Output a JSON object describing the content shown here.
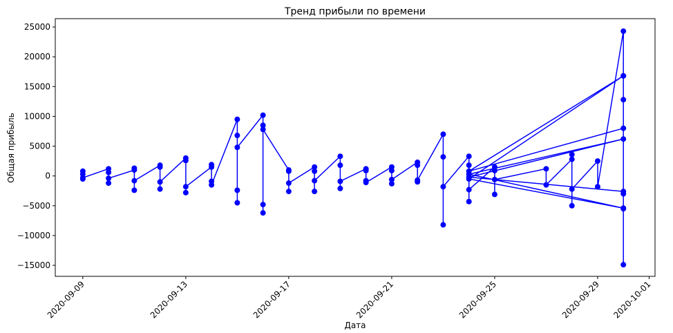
{
  "chart_data": {
    "type": "line",
    "title": "Тренд прибыли по времени",
    "xlabel": "Дата",
    "ylabel": "Общая прибыль",
    "color": "#0000ff",
    "marker": "o",
    "xlim": [
      "2020-09-07T22:20",
      "2020-10-01T05:30"
    ],
    "xticks": [
      "2020-09-09",
      "2020-09-13",
      "2020-09-17",
      "2020-09-21",
      "2020-09-25",
      "2020-09-29",
      "2020-10-01"
    ],
    "ylim": [
      -16850,
      26400
    ],
    "yticks": [
      {
        "value": -15000,
        "label": "−15000"
      },
      {
        "value": -10000,
        "label": "−10000"
      },
      {
        "value": -5000,
        "label": "−5000"
      },
      0,
      5000,
      10000,
      15000,
      20000,
      25000
    ],
    "x": [
      "2020-09-09",
      "2020-09-09",
      "2020-09-09",
      "2020-09-09",
      "2020-09-10",
      "2020-09-10",
      "2020-09-10",
      "2020-09-10",
      "2020-09-11",
      "2020-09-11",
      "2020-09-11",
      "2020-09-11",
      "2020-09-12",
      "2020-09-12",
      "2020-09-12",
      "2020-09-12",
      "2020-09-13",
      "2020-09-13",
      "2020-09-13",
      "2020-09-13",
      "2020-09-14",
      "2020-09-14",
      "2020-09-14",
      "2020-09-14",
      "2020-09-15",
      "2020-09-15",
      "2020-09-15",
      "2020-09-15",
      "2020-09-15",
      "2020-09-16",
      "2020-09-16",
      "2020-09-16",
      "2020-09-16",
      "2020-09-16",
      "2020-09-17",
      "2020-09-17",
      "2020-09-17",
      "2020-09-17",
      "2020-09-18",
      "2020-09-18",
      "2020-09-18",
      "2020-09-18",
      "2020-09-19",
      "2020-09-19",
      "2020-09-19",
      "2020-09-19",
      "2020-09-20",
      "2020-09-20",
      "2020-09-20",
      "2020-09-20",
      "2020-09-21",
      "2020-09-21",
      "2020-09-21",
      "2020-09-21",
      "2020-09-22",
      "2020-09-22",
      "2020-09-22",
      "2020-09-22",
      "2020-09-23",
      "2020-09-23",
      "2020-09-23",
      "2020-09-23",
      "2020-09-24",
      "2020-09-24",
      "2020-09-24",
      "2020-09-24",
      "2020-09-25",
      "2020-09-25",
      "2020-09-25",
      "2020-09-25",
      "2020-09-27",
      "2020-09-27",
      "2020-09-28",
      "2020-09-28",
      "2020-09-28",
      "2020-09-28",
      "2020-09-29",
      "2020-09-29",
      "2020-09-30",
      "2020-09-30",
      "2020-09-30",
      "2020-09-30",
      "2020-09-30",
      "2020-09-30",
      "2020-09-30",
      "2020-09-24",
      "2020-09-30",
      "2020-09-24",
      "2020-09-30",
      "2020-09-24",
      "2020-09-30",
      "2020-09-24",
      "2020-09-30"
    ],
    "values": [
      300,
      -500,
      800,
      -300,
      1200,
      -1200,
      600,
      -400,
      1000,
      -2400,
      1300,
      -800,
      1800,
      -2200,
      1500,
      -1000,
      3000,
      -2800,
      2600,
      -1800,
      1500,
      -900,
      1900,
      -1500,
      9500,
      -4500,
      6800,
      -2400,
      4800,
      10200,
      -6200,
      8500,
      -4800,
      7800,
      1000,
      -2600,
      800,
      -1200,
      1500,
      -2600,
      800,
      -800,
      3300,
      -2100,
      1800,
      -900,
      1200,
      -800,
      900,
      -1100,
      1500,
      -1300,
      900,
      -600,
      2300,
      -1000,
      1800,
      -700,
      7000,
      -8200,
      3200,
      -1800,
      3300,
      -4300,
      1800,
      -2300,
      1500,
      -3100,
      900,
      -600,
      1200,
      -1500,
      2800,
      -5000,
      3600,
      -2200,
      2500,
      -1800,
      24300,
      -14900,
      16800,
      -5500,
      12800,
      -3000,
      8000,
      800,
      16800,
      -500,
      -5400,
      300,
      6200,
      -200,
      -2600
    ]
  }
}
